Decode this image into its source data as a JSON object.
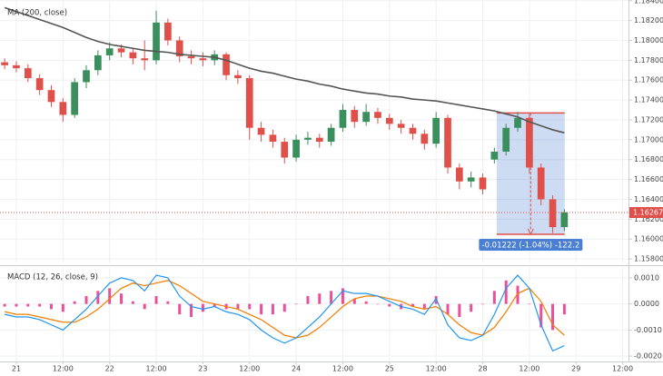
{
  "chart_data": [
    {
      "type": "candlestick",
      "title": "MA (200, close)",
      "x": [
        -3,
        0,
        3,
        6,
        9,
        12,
        15,
        18,
        21,
        24,
        27,
        30,
        33,
        36,
        39,
        42,
        45,
        48,
        51,
        54,
        57,
        60,
        63,
        66,
        69,
        72,
        75,
        78,
        81,
        84,
        87,
        90,
        93,
        96,
        99,
        102,
        105,
        108,
        111,
        114,
        117,
        120,
        123,
        126,
        129,
        132,
        135,
        138,
        141
      ],
      "open": [
        1.1778,
        1.1775,
        1.1772,
        1.1762,
        1.175,
        1.1738,
        1.1725,
        1.1758,
        1.177,
        1.1785,
        1.1792,
        1.1788,
        1.1782,
        1.178,
        1.1818,
        1.18,
        1.1784,
        1.1782,
        1.178,
        1.1786,
        1.1765,
        1.1762,
        1.1712,
        1.1705,
        1.1698,
        1.1682,
        1.17,
        1.1702,
        1.1698,
        1.1712,
        1.173,
        1.1718,
        1.1728,
        1.1722,
        1.1716,
        1.1712,
        1.1706,
        1.1696,
        1.1722,
        1.1672,
        1.1658,
        1.1662,
        1.168,
        1.1688,
        1.1712,
        1.1722,
        1.1672,
        1.164,
        1.1612
      ],
      "high": [
        1.1782,
        1.1779,
        1.1776,
        1.1766,
        1.1755,
        1.1742,
        1.1762,
        1.1775,
        1.179,
        1.1798,
        1.1796,
        1.1792,
        1.18,
        1.183,
        1.1822,
        1.1804,
        1.179,
        1.1788,
        1.179,
        1.1788,
        1.177,
        1.1765,
        1.1718,
        1.171,
        1.1702,
        1.1705,
        1.1708,
        1.1706,
        1.1716,
        1.1736,
        1.1734,
        1.1736,
        1.1732,
        1.1726,
        1.172,
        1.1716,
        1.171,
        1.1728,
        1.1725,
        1.1676,
        1.1668,
        1.1666,
        1.1692,
        1.1716,
        1.1728,
        1.1726,
        1.1676,
        1.1644,
        1.163
      ],
      "low": [
        1.1771,
        1.1768,
        1.1758,
        1.1745,
        1.1733,
        1.1718,
        1.1722,
        1.1752,
        1.1765,
        1.178,
        1.1783,
        1.1776,
        1.177,
        1.1776,
        1.1795,
        1.1778,
        1.1776,
        1.1774,
        1.1775,
        1.176,
        1.1756,
        1.17,
        1.1698,
        1.1692,
        1.1676,
        1.1678,
        1.1695,
        1.1692,
        1.1694,
        1.1708,
        1.1712,
        1.1714,
        1.1716,
        1.171,
        1.1706,
        1.17,
        1.169,
        1.1692,
        1.1666,
        1.165,
        1.1652,
        1.1645,
        1.1676,
        1.1684,
        1.1708,
        1.1666,
        1.1634,
        1.1606,
        1.1608
      ],
      "close": [
        1.1775,
        1.1772,
        1.1762,
        1.175,
        1.1738,
        1.1725,
        1.1758,
        1.177,
        1.1785,
        1.1792,
        1.1788,
        1.1782,
        1.178,
        1.1818,
        1.18,
        1.1784,
        1.1782,
        1.178,
        1.1786,
        1.1765,
        1.1762,
        1.1712,
        1.1705,
        1.1698,
        1.1682,
        1.17,
        1.1702,
        1.1698,
        1.1712,
        1.173,
        1.1718,
        1.1728,
        1.1722,
        1.1716,
        1.1712,
        1.1706,
        1.1696,
        1.1722,
        1.1672,
        1.1658,
        1.1662,
        1.165,
        1.1688,
        1.1712,
        1.1722,
        1.1672,
        1.164,
        1.1612,
        1.1627
      ],
      "up_color": "#3a8f5c",
      "down_color": "#e0504a",
      "ma": {
        "color": "#555555",
        "values": [
          1.1833,
          1.1829,
          1.1825,
          1.1821,
          1.1817,
          1.1813,
          1.1808,
          1.1803,
          1.1799,
          1.1796,
          1.1794,
          1.1792,
          1.179,
          1.1789,
          1.1788,
          1.1786,
          1.1785,
          1.1784,
          1.1783,
          1.178,
          1.1776,
          1.1772,
          1.1769,
          1.1767,
          1.1764,
          1.1761,
          1.1759,
          1.1756,
          1.1754,
          1.1751,
          1.1749,
          1.1747,
          1.1746,
          1.1744,
          1.1743,
          1.1741,
          1.174,
          1.1739,
          1.1737,
          1.1735,
          1.1733,
          1.1731,
          1.1729,
          1.1726,
          1.1723,
          1.1718,
          1.1714,
          1.171,
          1.1707
        ]
      },
      "last_price": 1.16267,
      "last_price_color": "#e0504a",
      "measure": {
        "x": [
          123.6,
          141.1
        ],
        "y": [
          1.1727,
          1.16048
        ],
        "label": "-0.01222 (-1.04%) -122.2",
        "color": "#4a7fd4"
      },
      "xlim": [
        -4.2,
        157.5
      ],
      "ylim": [
        1.15755,
        1.18407
      ],
      "yticks": [
        {
          "value": 1.184,
          "label": "1.18400"
        },
        {
          "value": 1.182,
          "label": "1.18200"
        },
        {
          "value": 1.18,
          "label": "1.18000"
        },
        {
          "value": 1.178,
          "label": "1.17800"
        },
        {
          "value": 1.176,
          "label": "1.17600"
        },
        {
          "value": 1.174,
          "label": "1.17400"
        },
        {
          "value": 1.172,
          "label": "1.17200"
        },
        {
          "value": 1.17,
          "label": "1.17000"
        },
        {
          "value": 1.168,
          "label": "1.16800"
        },
        {
          "value": 1.166,
          "label": "1.16600"
        },
        {
          "value": 1.164,
          "label": "1.16400"
        },
        {
          "value": 1.162,
          "label": "1.16200"
        },
        {
          "value": 1.16,
          "label": "1.16000"
        },
        {
          "value": 1.158,
          "label": "1.15800"
        }
      ],
      "grid": true
    },
    {
      "type": "macd",
      "title": "MACD (12, 26, close, 9)",
      "x": [
        -3,
        0,
        3,
        6,
        9,
        12,
        15,
        18,
        21,
        24,
        27,
        30,
        33,
        36,
        39,
        42,
        45,
        48,
        51,
        54,
        57,
        60,
        63,
        66,
        69,
        72,
        75,
        78,
        81,
        84,
        87,
        90,
        93,
        96,
        99,
        102,
        105,
        108,
        111,
        114,
        117,
        120,
        123,
        126,
        129,
        132,
        135,
        138,
        141
      ],
      "series": [
        {
          "color": "#2196f3",
          "values": [
            -0.0004,
            -0.0005,
            -0.0005,
            -0.0006,
            -0.0008,
            -0.001,
            -0.0006,
            -0.0002,
            0.0003,
            0.0008,
            0.001,
            0.0009,
            0.0005,
            0.0011,
            0.001,
            0.0003,
            -0.0001,
            -0.0002,
            -0.0001,
            -0.0003,
            -0.0004,
            -0.0006,
            -0.001,
            -0.0013,
            -0.0015,
            -0.0013,
            -0.0009,
            -0.0005,
            0.0,
            0.0005,
            0.0004,
            0.0004,
            0.0003,
            0.0001,
            -0.0001,
            -0.0002,
            -0.0004,
            0.0002,
            -0.0008,
            -0.0013,
            -0.0014,
            -0.0012,
            -0.0004,
            0.0006,
            0.0011,
            0.0006,
            -0.0008,
            -0.0018,
            -0.0016
          ]
        },
        {
          "color": "#f57c00",
          "values": [
            -0.0003,
            -0.0004,
            -0.0004,
            -0.0005,
            -0.0006,
            -0.0007,
            -0.0007,
            -0.0005,
            -0.0002,
            0.0002,
            0.0006,
            0.0008,
            0.0007,
            0.0008,
            0.0009,
            0.0007,
            0.0004,
            0.0001,
            0.0,
            -0.0001,
            -0.0002,
            -0.0004,
            -0.0006,
            -0.0009,
            -0.0012,
            -0.0013,
            -0.0012,
            -0.0009,
            -0.0005,
            -0.0001,
            0.0002,
            0.0003,
            0.0003,
            0.0002,
            0.0001,
            -0.0001,
            -0.0002,
            -0.0001,
            -0.0004,
            -0.0008,
            -0.0011,
            -0.0012,
            -0.0009,
            -0.0003,
            0.0004,
            0.0006,
            0.0001,
            -0.0008,
            -0.0012
          ]
        }
      ],
      "histogram": {
        "color": "#ec4f9a",
        "values": [
          -0.0001,
          -0.0001,
          -0.0001,
          -0.0001,
          -0.0002,
          -0.0003,
          0.0001,
          0.0003,
          0.0005,
          0.0006,
          0.0004,
          0.0001,
          -0.0002,
          0.0003,
          0.0001,
          -0.0004,
          -0.0005,
          -0.0003,
          -0.0001,
          -0.0002,
          -0.0002,
          -0.0002,
          -0.0004,
          -0.0004,
          -0.0003,
          0.0,
          0.0003,
          0.0004,
          0.0005,
          0.0006,
          0.0002,
          0.0001,
          0.0,
          -0.0001,
          -0.0002,
          -0.0001,
          -0.0002,
          0.0003,
          -0.0004,
          -0.0005,
          -0.0003,
          0.0,
          0.0005,
          0.0009,
          0.0007,
          0.0,
          -0.0009,
          -0.001,
          -0.0004
        ]
      },
      "xlim": [
        -4.2,
        157.5
      ],
      "ylim": [
        -0.00217,
        0.00138
      ],
      "yticks": [
        {
          "value": 0.001,
          "label": "0.0010"
        },
        {
          "value": 0,
          "label": "0.0000"
        },
        {
          "value": -0.001,
          "label": "-0.0010"
        },
        {
          "value": -0.002,
          "label": "-0.0020"
        }
      ],
      "xticks": [
        {
          "value": 0,
          "label": "21"
        },
        {
          "value": 12,
          "label": "12:00"
        },
        {
          "value": 24,
          "label": "22"
        },
        {
          "value": 36,
          "label": "12:00"
        },
        {
          "value": 48,
          "label": "23"
        },
        {
          "value": 60,
          "label": "12:00"
        },
        {
          "value": 72,
          "label": "24"
        },
        {
          "value": 84,
          "label": "12:00"
        },
        {
          "value": 96,
          "label": "25"
        },
        {
          "value": 108,
          "label": "12:00"
        },
        {
          "value": 120,
          "label": "28"
        },
        {
          "value": 132,
          "label": "12:00"
        },
        {
          "value": 144,
          "label": "29"
        },
        {
          "value": 156,
          "label": "12:00"
        }
      ],
      "grid": true
    }
  ]
}
